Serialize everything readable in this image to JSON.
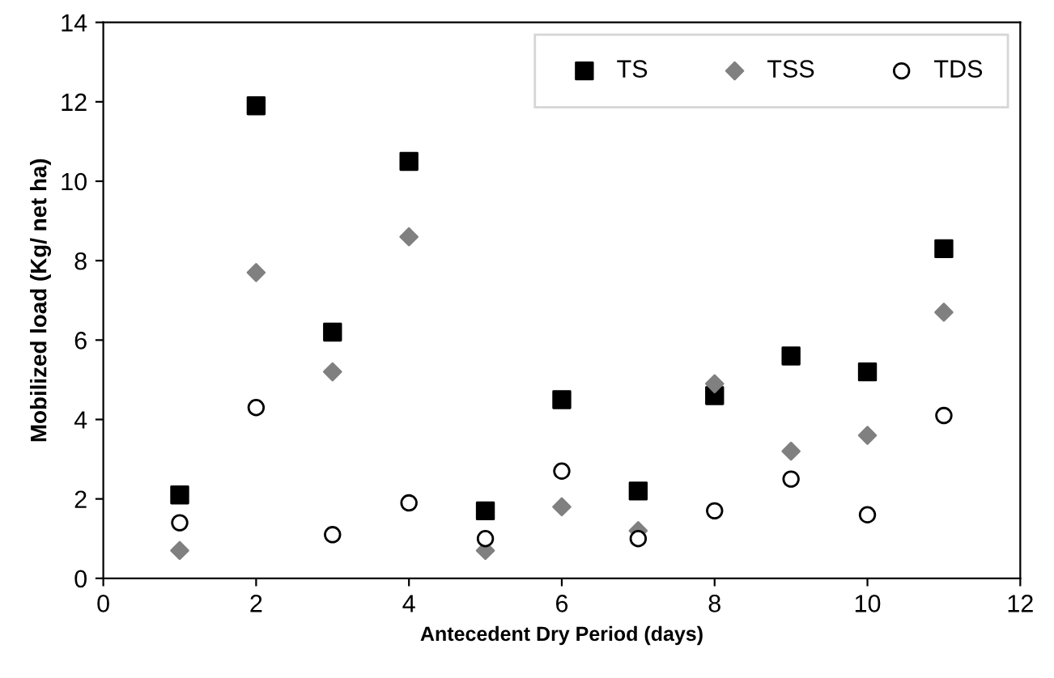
{
  "chart_data": {
    "type": "scatter",
    "xlabel": "Antecedent Dry Period (days)",
    "ylabel": "Mobilized load (Kg/ net ha)",
    "x": [
      1,
      2,
      3,
      4,
      5,
      6,
      7,
      8,
      9,
      10,
      11
    ],
    "series": [
      {
        "name": "TS",
        "color": "#000000",
        "marker": "square",
        "values": [
          2.1,
          11.9,
          6.2,
          10.5,
          1.7,
          4.5,
          2.2,
          4.6,
          5.6,
          5.2,
          8.3
        ]
      },
      {
        "name": "TSS",
        "color": "#808080",
        "marker": "diamond",
        "values": [
          0.7,
          7.7,
          5.2,
          8.6,
          0.7,
          1.8,
          1.2,
          4.9,
          3.2,
          3.6,
          6.7
        ]
      },
      {
        "name": "TDS",
        "color": "#ffffff",
        "marker": "circle",
        "values": [
          1.4,
          4.3,
          1.1,
          1.9,
          1.0,
          2.7,
          1.0,
          1.7,
          2.5,
          1.6,
          4.1
        ]
      }
    ],
    "xlim": [
      0,
      12
    ],
    "xticks": [
      0,
      2,
      4,
      6,
      8,
      10,
      12
    ],
    "ylim": [
      0,
      14
    ],
    "yticks": [
      0,
      2,
      4,
      6,
      8,
      10,
      12,
      14
    ],
    "grid": false,
    "legend": "top right"
  }
}
